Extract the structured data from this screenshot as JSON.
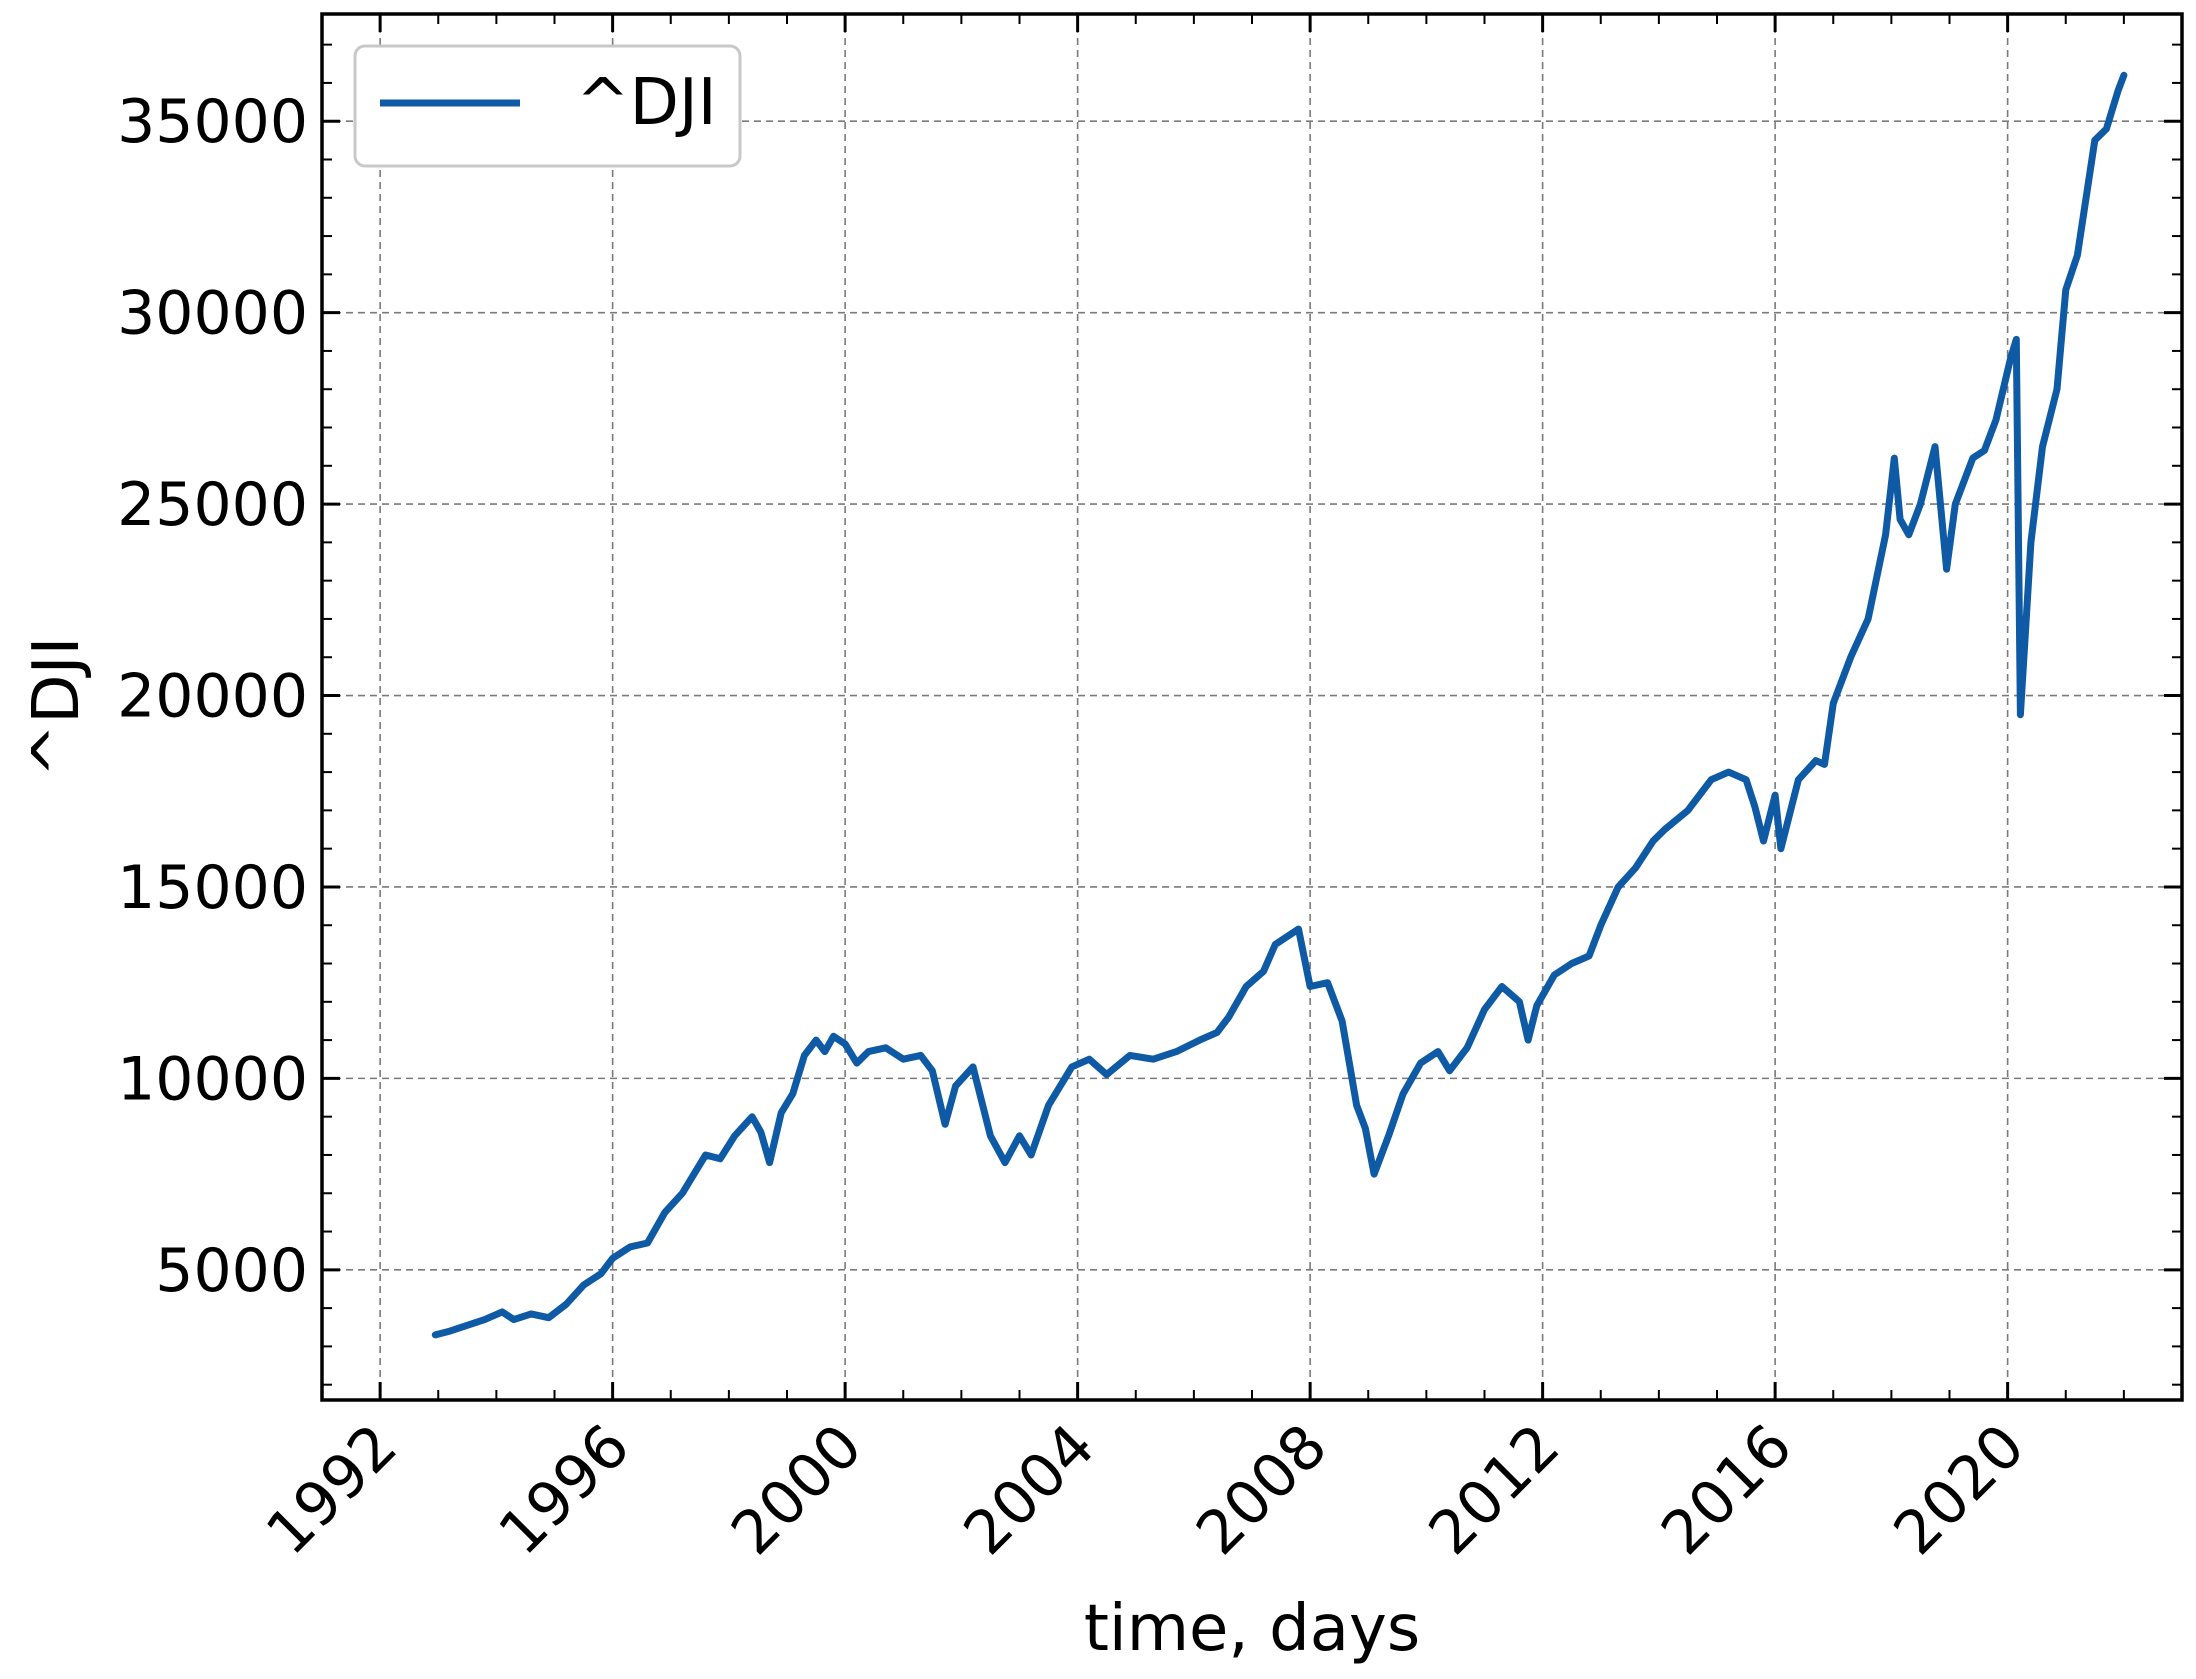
{
  "chart_data": {
    "type": "line",
    "title": "",
    "xlabel": "time, days",
    "ylabel": "^DJI",
    "x_ticks": [
      "1992",
      "1996",
      "2000",
      "2004",
      "2008",
      "2012",
      "2016",
      "2020"
    ],
    "y_ticks": [
      "5000",
      "10000",
      "15000",
      "20000",
      "25000",
      "30000",
      "35000"
    ],
    "xlim": [
      1991.0,
      2023.0
    ],
    "ylim": [
      1600,
      37800
    ],
    "grid": true,
    "legend": {
      "placement": "top-left",
      "entries": [
        "^DJI"
      ]
    },
    "series": [
      {
        "name": "^DJI",
        "color": "#0f5aa5",
        "x": [
          1992.95,
          1993.2,
          1993.5,
          1993.8,
          1994.1,
          1994.3,
          1994.6,
          1994.9,
          1995.2,
          1995.5,
          1995.8,
          1996.0,
          1996.3,
          1996.6,
          1996.9,
          1997.2,
          1997.4,
          1997.6,
          1997.85,
          1998.1,
          1998.4,
          1998.55,
          1998.7,
          1998.9,
          1999.1,
          1999.3,
          1999.5,
          1999.65,
          1999.8,
          2000.0,
          2000.2,
          2000.4,
          2000.7,
          2001.0,
          2001.3,
          2001.5,
          2001.72,
          2001.9,
          2002.2,
          2002.5,
          2002.75,
          2003.0,
          2003.2,
          2003.5,
          2003.9,
          2004.2,
          2004.5,
          2004.9,
          2005.3,
          2005.7,
          2006.1,
          2006.4,
          2006.6,
          2006.9,
          2007.2,
          2007.4,
          2007.8,
          2008.0,
          2008.3,
          2008.55,
          2008.8,
          2008.95,
          2009.1,
          2009.35,
          2009.6,
          2009.9,
          2010.2,
          2010.4,
          2010.7,
          2011.0,
          2011.3,
          2011.6,
          2011.75,
          2011.9,
          2012.2,
          2012.5,
          2012.8,
          2013.0,
          2013.3,
          2013.6,
          2013.9,
          2014.1,
          2014.5,
          2014.9,
          2015.2,
          2015.5,
          2015.65,
          2015.8,
          2016.0,
          2016.1,
          2016.4,
          2016.7,
          2016.85,
          2017.0,
          2017.3,
          2017.6,
          2017.9,
          2018.05,
          2018.15,
          2018.3,
          2018.5,
          2018.75,
          2018.95,
          2019.1,
          2019.4,
          2019.6,
          2019.8,
          2020.05,
          2020.15,
          2020.22,
          2020.4,
          2020.6,
          2020.85,
          2021.0,
          2021.2,
          2021.5,
          2021.7,
          2021.9,
          2022.0
        ],
        "y": [
          3300,
          3400,
          3550,
          3700,
          3900,
          3700,
          3850,
          3750,
          4100,
          4600,
          4900,
          5300,
          5600,
          5700,
          6500,
          7000,
          7500,
          8000,
          7900,
          8500,
          9000,
          8600,
          7800,
          9100,
          9600,
          10600,
          11000,
          10700,
          11100,
          10900,
          10400,
          10700,
          10800,
          10500,
          10600,
          10200,
          8800,
          9800,
          10300,
          8500,
          7800,
          8500,
          8000,
          9300,
          10300,
          10500,
          10100,
          10600,
          10500,
          10700,
          11000,
          11200,
          11600,
          12400,
          12800,
          13500,
          13900,
          12400,
          12500,
          11500,
          9300,
          8700,
          7500,
          8500,
          9600,
          10400,
          10700,
          10200,
          10800,
          11800,
          12400,
          12000,
          11000,
          11900,
          12700,
          13000,
          13200,
          14000,
          15000,
          15500,
          16200,
          16500,
          17000,
          17800,
          18000,
          17800,
          17100,
          16200,
          17400,
          16000,
          17800,
          18300,
          18200,
          19800,
          21000,
          22000,
          24200,
          26200,
          24600,
          24200,
          25000,
          26500,
          23300,
          25000,
          26200,
          26400,
          27200,
          28800,
          29300,
          19500,
          24000,
          26500,
          28000,
          30600,
          31500,
          34500,
          34800,
          35800,
          36200
        ]
      }
    ]
  }
}
